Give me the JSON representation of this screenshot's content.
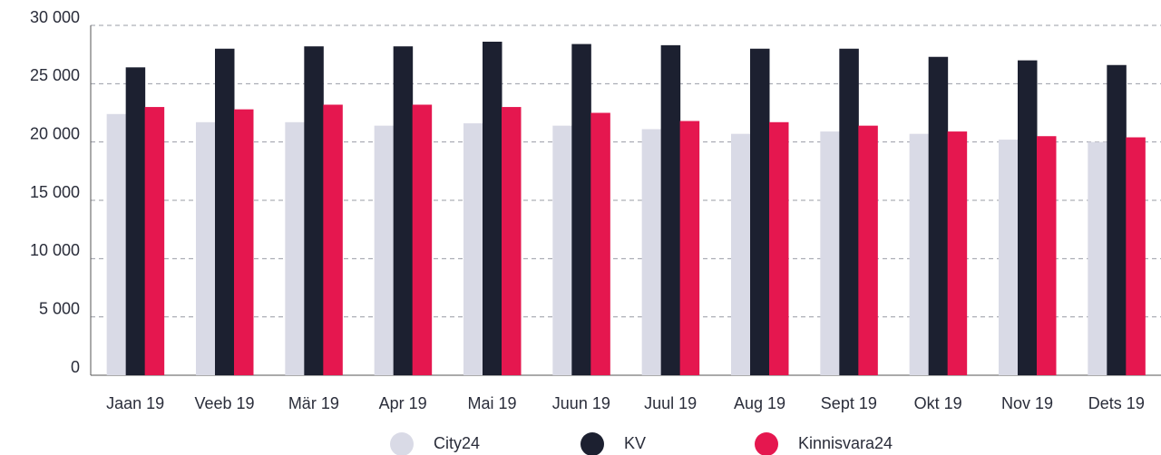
{
  "chart_data": {
    "type": "bar",
    "categories": [
      "Jaan 19",
      "Veeb 19",
      "Mär 19",
      "Apr 19",
      "Mai 19",
      "Juun 19",
      "Juul 19",
      "Aug 19",
      "Sept 19",
      "Okt 19",
      "Nov 19",
      "Dets 19"
    ],
    "series": [
      {
        "name": "City24",
        "color": "#d9dae6",
        "values": [
          22400,
          21700,
          21700,
          21400,
          21600,
          21400,
          21100,
          20700,
          20900,
          20700,
          20200,
          20000
        ]
      },
      {
        "name": "KV",
        "color": "#1c2030",
        "values": [
          26400,
          28000,
          28200,
          28200,
          28600,
          28400,
          28300,
          28000,
          28000,
          27300,
          27000,
          26600
        ]
      },
      {
        "name": "Kinnisvara24",
        "color": "#e5174f",
        "values": [
          23000,
          22800,
          23200,
          23200,
          23000,
          22500,
          21800,
          21700,
          21400,
          20900,
          20500,
          20400
        ]
      }
    ],
    "ylim": [
      0,
      30000
    ],
    "yticks": [
      0,
      {
        "value": 5000,
        "label": "5 000"
      },
      {
        "value": 10000,
        "label": "10 000"
      },
      {
        "value": 15000,
        "label": "15 000"
      },
      {
        "value": 20000,
        "label": "20 000"
      },
      {
        "value": 25000,
        "label": "25 000"
      },
      {
        "value": 30000,
        "label": "30 000"
      }
    ],
    "grid": true,
    "legend": "bottom"
  }
}
